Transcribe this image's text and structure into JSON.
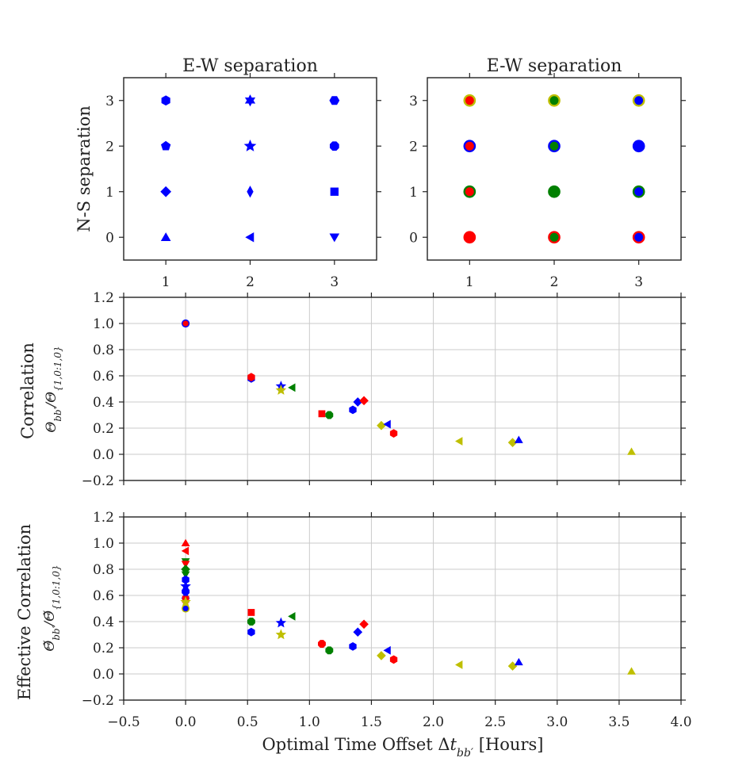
{
  "chart_data": [
    {
      "id": "panel-a",
      "type": "scatter",
      "title": "E-W separation",
      "xlabel": "",
      "ylabel": "N-S separation",
      "xlim": [
        0.5,
        3.5
      ],
      "ylim": [
        -0.5,
        3.5
      ],
      "xticks": [
        1,
        2,
        3
      ],
      "yticks": [
        0,
        1,
        2,
        3
      ],
      "grid": false,
      "points": [
        {
          "x": 1,
          "y": 3,
          "marker": "hexagon",
          "color": "#0000ff"
        },
        {
          "x": 2,
          "y": 3,
          "marker": "star6",
          "color": "#0000ff"
        },
        {
          "x": 3,
          "y": 3,
          "marker": "hexagon-flat",
          "color": "#0000ff"
        },
        {
          "x": 1,
          "y": 2,
          "marker": "pentagon",
          "color": "#0000ff"
        },
        {
          "x": 2,
          "y": 2,
          "marker": "star",
          "color": "#0000ff"
        },
        {
          "x": 3,
          "y": 2,
          "marker": "octagon",
          "color": "#0000ff"
        },
        {
          "x": 1,
          "y": 1,
          "marker": "diamond",
          "color": "#0000ff"
        },
        {
          "x": 2,
          "y": 1,
          "marker": "thin-diamond",
          "color": "#0000ff"
        },
        {
          "x": 3,
          "y": 1,
          "marker": "square",
          "color": "#0000ff"
        },
        {
          "x": 1,
          "y": 0,
          "marker": "triangle-up",
          "color": "#0000ff"
        },
        {
          "x": 2,
          "y": 0,
          "marker": "triangle-left",
          "color": "#0000ff"
        },
        {
          "x": 3,
          "y": 0,
          "marker": "triangle-down",
          "color": "#0000ff"
        }
      ]
    },
    {
      "id": "panel-b",
      "type": "scatter",
      "title": "E-W separation",
      "xlabel": "",
      "ylabel": "",
      "xlim": [
        0.5,
        3.5
      ],
      "ylim": [
        -0.5,
        3.5
      ],
      "xticks": [
        1,
        2,
        3
      ],
      "yticks": [
        0,
        1,
        2,
        3
      ],
      "grid": false,
      "points": [
        {
          "x": 1,
          "y": 3,
          "edge": "#bfbf00",
          "face": "#ff0000"
        },
        {
          "x": 2,
          "y": 3,
          "edge": "#bfbf00",
          "face": "#008000"
        },
        {
          "x": 3,
          "y": 3,
          "edge": "#bfbf00",
          "face": "#0000ff"
        },
        {
          "x": 1,
          "y": 2,
          "edge": "#0000ff",
          "face": "#ff0000"
        },
        {
          "x": 2,
          "y": 2,
          "edge": "#0000ff",
          "face": "#008000"
        },
        {
          "x": 3,
          "y": 2,
          "edge": "#0000ff",
          "face": "#0000ff"
        },
        {
          "x": 1,
          "y": 1,
          "edge": "#008000",
          "face": "#ff0000"
        },
        {
          "x": 2,
          "y": 1,
          "edge": "#008000",
          "face": "#008000"
        },
        {
          "x": 3,
          "y": 1,
          "edge": "#008000",
          "face": "#0000ff"
        },
        {
          "x": 1,
          "y": 0,
          "edge": "#ff0000",
          "face": "#ff0000"
        },
        {
          "x": 2,
          "y": 0,
          "edge": "#ff0000",
          "face": "#008000"
        },
        {
          "x": 3,
          "y": 0,
          "edge": "#ff0000",
          "face": "#0000ff"
        }
      ]
    },
    {
      "id": "panel-c",
      "type": "scatter",
      "title": "",
      "xlabel": "",
      "ylabel": "Correlation",
      "ylabel2": "Θ_{bb'}/Θ_{1,0:1,0}",
      "xlim": [
        -0.5,
        4.0
      ],
      "ylim": [
        -0.2,
        1.2
      ],
      "yticks": [
        -0.2,
        0.0,
        0.2,
        0.4,
        0.6,
        0.8,
        1.0,
        1.2
      ],
      "ytick_labels": [
        "−0.2",
        "0.0",
        "0.2",
        "0.4",
        "0.6",
        "0.8",
        "1.0",
        "1.2"
      ],
      "grid": true,
      "points": [
        {
          "x": 0.0,
          "y": 1.0,
          "marker": "circle",
          "edge": "#0000ff",
          "face": "#ff0000"
        },
        {
          "x": 0.53,
          "y": 0.58,
          "marker": "hexagon",
          "edge": "#0000ff",
          "face": "#0000ff"
        },
        {
          "x": 0.53,
          "y": 0.59,
          "marker": "hexagon",
          "edge": "#ff0000",
          "face": "#ff0000"
        },
        {
          "x": 0.77,
          "y": 0.52,
          "marker": "star",
          "edge": "#0000ff",
          "face": "#0000ff"
        },
        {
          "x": 0.77,
          "y": 0.49,
          "marker": "star",
          "edge": "#bfbf00",
          "face": "#bfbf00"
        },
        {
          "x": 0.86,
          "y": 0.51,
          "marker": "triangle-left",
          "edge": "#008000",
          "face": "#008000"
        },
        {
          "x": 1.1,
          "y": 0.31,
          "marker": "square",
          "edge": "#ff0000",
          "face": "#ff0000"
        },
        {
          "x": 1.16,
          "y": 0.3,
          "marker": "octagon",
          "edge": "#008000",
          "face": "#008000"
        },
        {
          "x": 1.35,
          "y": 0.34,
          "marker": "hexagon",
          "edge": "#0000ff",
          "face": "#0000ff"
        },
        {
          "x": 1.39,
          "y": 0.4,
          "marker": "diamond",
          "edge": "#0000ff",
          "face": "#0000ff"
        },
        {
          "x": 1.44,
          "y": 0.41,
          "marker": "diamond",
          "edge": "#ff0000",
          "face": "#ff0000"
        },
        {
          "x": 1.58,
          "y": 0.22,
          "marker": "diamond",
          "edge": "#bfbf00",
          "face": "#bfbf00"
        },
        {
          "x": 1.63,
          "y": 0.23,
          "marker": "triangle-left",
          "edge": "#0000ff",
          "face": "#0000ff"
        },
        {
          "x": 1.68,
          "y": 0.16,
          "marker": "hexagon",
          "edge": "#ff0000",
          "face": "#ff0000"
        },
        {
          "x": 2.21,
          "y": 0.1,
          "marker": "triangle-left",
          "edge": "#bfbf00",
          "face": "#bfbf00"
        },
        {
          "x": 2.64,
          "y": 0.09,
          "marker": "diamond",
          "edge": "#bfbf00",
          "face": "#bfbf00"
        },
        {
          "x": 2.69,
          "y": 0.11,
          "marker": "triangle-up",
          "edge": "#0000ff",
          "face": "#0000ff"
        },
        {
          "x": 3.6,
          "y": 0.02,
          "marker": "triangle-up",
          "edge": "#bfbf00",
          "face": "#bfbf00"
        }
      ]
    },
    {
      "id": "panel-d",
      "type": "scatter",
      "title": "",
      "xlabel": "Optimal Time Offset Δt_{bb'} [Hours]",
      "ylabel": "Effective Correlation",
      "ylabel2": "Θ̃_{bb'}/Θ̃_{1,0:1,0}",
      "xlim": [
        -0.5,
        4.0
      ],
      "ylim": [
        -0.2,
        1.2
      ],
      "xticks": [
        -0.5,
        0.0,
        0.5,
        1.0,
        1.5,
        2.0,
        2.5,
        3.0,
        3.5,
        4.0
      ],
      "xtick_labels": [
        "−0.5",
        "0.0",
        "0.5",
        "1.0",
        "1.5",
        "2.0",
        "2.5",
        "3.0",
        "3.5",
        "4.0"
      ],
      "yticks": [
        -0.2,
        0.0,
        0.2,
        0.4,
        0.6,
        0.8,
        1.0,
        1.2
      ],
      "ytick_labels": [
        "−0.2",
        "0.0",
        "0.2",
        "0.4",
        "0.6",
        "0.8",
        "1.0",
        "1.2"
      ],
      "grid": true,
      "points": [
        {
          "x": 0.0,
          "y": 1.0,
          "marker": "triangle-up",
          "edge": "#ff0000",
          "face": "#ff0000"
        },
        {
          "x": 0.0,
          "y": 0.94,
          "marker": "triangle-left",
          "edge": "#ff0000",
          "face": "#ff0000"
        },
        {
          "x": 0.0,
          "y": 0.86,
          "marker": "triangle-down",
          "edge": "#008000",
          "face": "#008000"
        },
        {
          "x": 0.0,
          "y": 0.84,
          "marker": "triangle-down",
          "edge": "#ff0000",
          "face": "#ff0000"
        },
        {
          "x": 0.0,
          "y": 0.8,
          "marker": "diamond",
          "edge": "#008000",
          "face": "#008000"
        },
        {
          "x": 0.0,
          "y": 0.76,
          "marker": "triangle-down",
          "edge": "#008000",
          "face": "#008000"
        },
        {
          "x": 0.0,
          "y": 0.72,
          "marker": "hexagon",
          "edge": "#0000ff",
          "face": "#0000ff"
        },
        {
          "x": 0.0,
          "y": 0.67,
          "marker": "star",
          "edge": "#0000ff",
          "face": "#0000ff"
        },
        {
          "x": 0.0,
          "y": 0.63,
          "marker": "octagon",
          "edge": "#0000ff",
          "face": "#0000ff"
        },
        {
          "x": 0.0,
          "y": 0.6,
          "marker": "triangle-up",
          "edge": "#0000ff",
          "face": "#0000ff"
        },
        {
          "x": 0.0,
          "y": 0.57,
          "marker": "square",
          "edge": "#ff0000",
          "face": "#ff0000"
        },
        {
          "x": 0.0,
          "y": 0.55,
          "marker": "star",
          "edge": "#bfbf00",
          "face": "#bfbf00"
        },
        {
          "x": 0.0,
          "y": 0.5,
          "marker": "circle",
          "edge": "#bfbf00",
          "face": "#0000ff"
        },
        {
          "x": 0.53,
          "y": 0.47,
          "marker": "square",
          "edge": "#ff0000",
          "face": "#ff0000"
        },
        {
          "x": 0.53,
          "y": 0.4,
          "marker": "octagon",
          "edge": "#008000",
          "face": "#008000"
        },
        {
          "x": 0.53,
          "y": 0.32,
          "marker": "hexagon",
          "edge": "#0000ff",
          "face": "#0000ff"
        },
        {
          "x": 0.77,
          "y": 0.39,
          "marker": "star",
          "edge": "#0000ff",
          "face": "#0000ff"
        },
        {
          "x": 0.77,
          "y": 0.3,
          "marker": "star",
          "edge": "#bfbf00",
          "face": "#bfbf00"
        },
        {
          "x": 0.86,
          "y": 0.44,
          "marker": "triangle-left",
          "edge": "#008000",
          "face": "#008000"
        },
        {
          "x": 1.1,
          "y": 0.23,
          "marker": "octagon",
          "edge": "#ff0000",
          "face": "#ff0000"
        },
        {
          "x": 1.16,
          "y": 0.18,
          "marker": "octagon",
          "edge": "#008000",
          "face": "#008000"
        },
        {
          "x": 1.35,
          "y": 0.21,
          "marker": "hexagon",
          "edge": "#0000ff",
          "face": "#0000ff"
        },
        {
          "x": 1.39,
          "y": 0.32,
          "marker": "diamond",
          "edge": "#0000ff",
          "face": "#0000ff"
        },
        {
          "x": 1.44,
          "y": 0.38,
          "marker": "diamond",
          "edge": "#ff0000",
          "face": "#ff0000"
        },
        {
          "x": 1.58,
          "y": 0.14,
          "marker": "diamond",
          "edge": "#bfbf00",
          "face": "#bfbf00"
        },
        {
          "x": 1.63,
          "y": 0.18,
          "marker": "triangle-left",
          "edge": "#0000ff",
          "face": "#0000ff"
        },
        {
          "x": 1.68,
          "y": 0.11,
          "marker": "hexagon",
          "edge": "#ff0000",
          "face": "#ff0000"
        },
        {
          "x": 2.21,
          "y": 0.07,
          "marker": "triangle-left",
          "edge": "#bfbf00",
          "face": "#bfbf00"
        },
        {
          "x": 2.64,
          "y": 0.06,
          "marker": "diamond",
          "edge": "#bfbf00",
          "face": "#bfbf00"
        },
        {
          "x": 2.69,
          "y": 0.09,
          "marker": "triangle-up",
          "edge": "#0000ff",
          "face": "#0000ff"
        },
        {
          "x": 3.6,
          "y": 0.02,
          "marker": "triangle-up",
          "edge": "#bfbf00",
          "face": "#bfbf00"
        }
      ]
    }
  ]
}
